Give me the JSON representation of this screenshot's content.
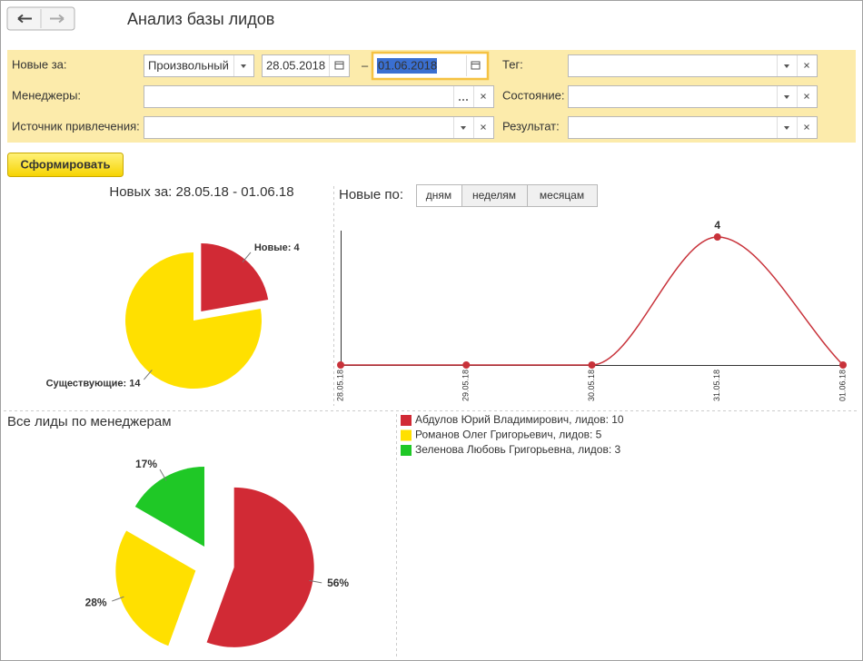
{
  "header": {
    "title": "Анализ базы лидов"
  },
  "filters": {
    "period": {
      "label": "Новые за:",
      "mode": "Произвольный",
      "from": "28.05.2018",
      "separator": "–",
      "to": "01.06.2018"
    },
    "managers": {
      "label": "Менеджеры:"
    },
    "source": {
      "label": "Источник привлечения:"
    },
    "tag": {
      "label": "Тег:"
    },
    "state": {
      "label": "Состояние:"
    },
    "result": {
      "label": "Результат:"
    }
  },
  "actions": {
    "generate": "Сформировать"
  },
  "chart_data": [
    {
      "type": "pie",
      "title": "Новых за: 28.05.18 - 01.06.18",
      "values": [
        4,
        14
      ],
      "value_labels": [
        "Новые: 4",
        "Существующие: 14"
      ],
      "colors": [
        "#d12a35",
        "#ffe000"
      ]
    },
    {
      "type": "line",
      "title": "Новые по:",
      "periods": [
        "дням",
        "неделям",
        "месяцам"
      ],
      "selected_period": 0,
      "categories": [
        "28.05.18",
        "29.05.18",
        "30.05.18",
        "31.05.18",
        "01.06.18"
      ],
      "values": [
        0,
        0,
        0,
        4,
        0
      ],
      "value_labels": [
        null,
        null,
        null,
        "4",
        null
      ],
      "color": "#c8323a",
      "ylim": [
        0,
        4.2
      ],
      "smooth": true
    },
    {
      "type": "pie",
      "title": "Все лиды по менеджерам",
      "categories": [
        "Абдулов Юрий Владимирович, лидов: 10",
        "Романов Олег Григорьевич, лидов: 5",
        "Зеленова Любовь Григорьевна, лидов: 3"
      ],
      "values": [
        10,
        5,
        3
      ],
      "value_labels": [
        "56%",
        "28%",
        "17%"
      ],
      "colors": [
        "#d12a35",
        "#ffe000",
        "#1fc826"
      ]
    }
  ]
}
